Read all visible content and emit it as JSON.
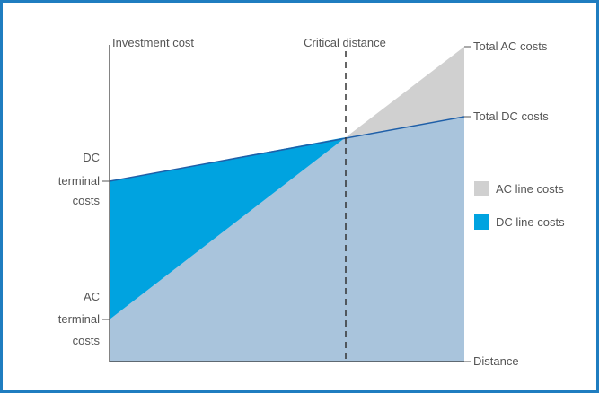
{
  "diagram": {
    "y_axis_label": "Investment cost",
    "x_axis_label": "Distance",
    "critical_label": "Critical distance",
    "total_ac_label": "Total AC costs",
    "total_dc_label": "Total DC costs",
    "dc_terminal_label": [
      "DC",
      "terminal",
      "costs"
    ],
    "ac_terminal_label": [
      "AC",
      "terminal",
      "costs"
    ],
    "legend": [
      {
        "label": "AC line costs",
        "color": "#d0d0d0"
      },
      {
        "label": "DC line costs",
        "color": "#00a3e0"
      }
    ]
  },
  "colors": {
    "frame": "#1f7dc0",
    "ac_region": "#a9c4dc",
    "dc_region": "#00a3e0",
    "ac_extra": "#d0d0d0",
    "dc_line": "#1f5fa8",
    "axis": "#333333"
  }
}
